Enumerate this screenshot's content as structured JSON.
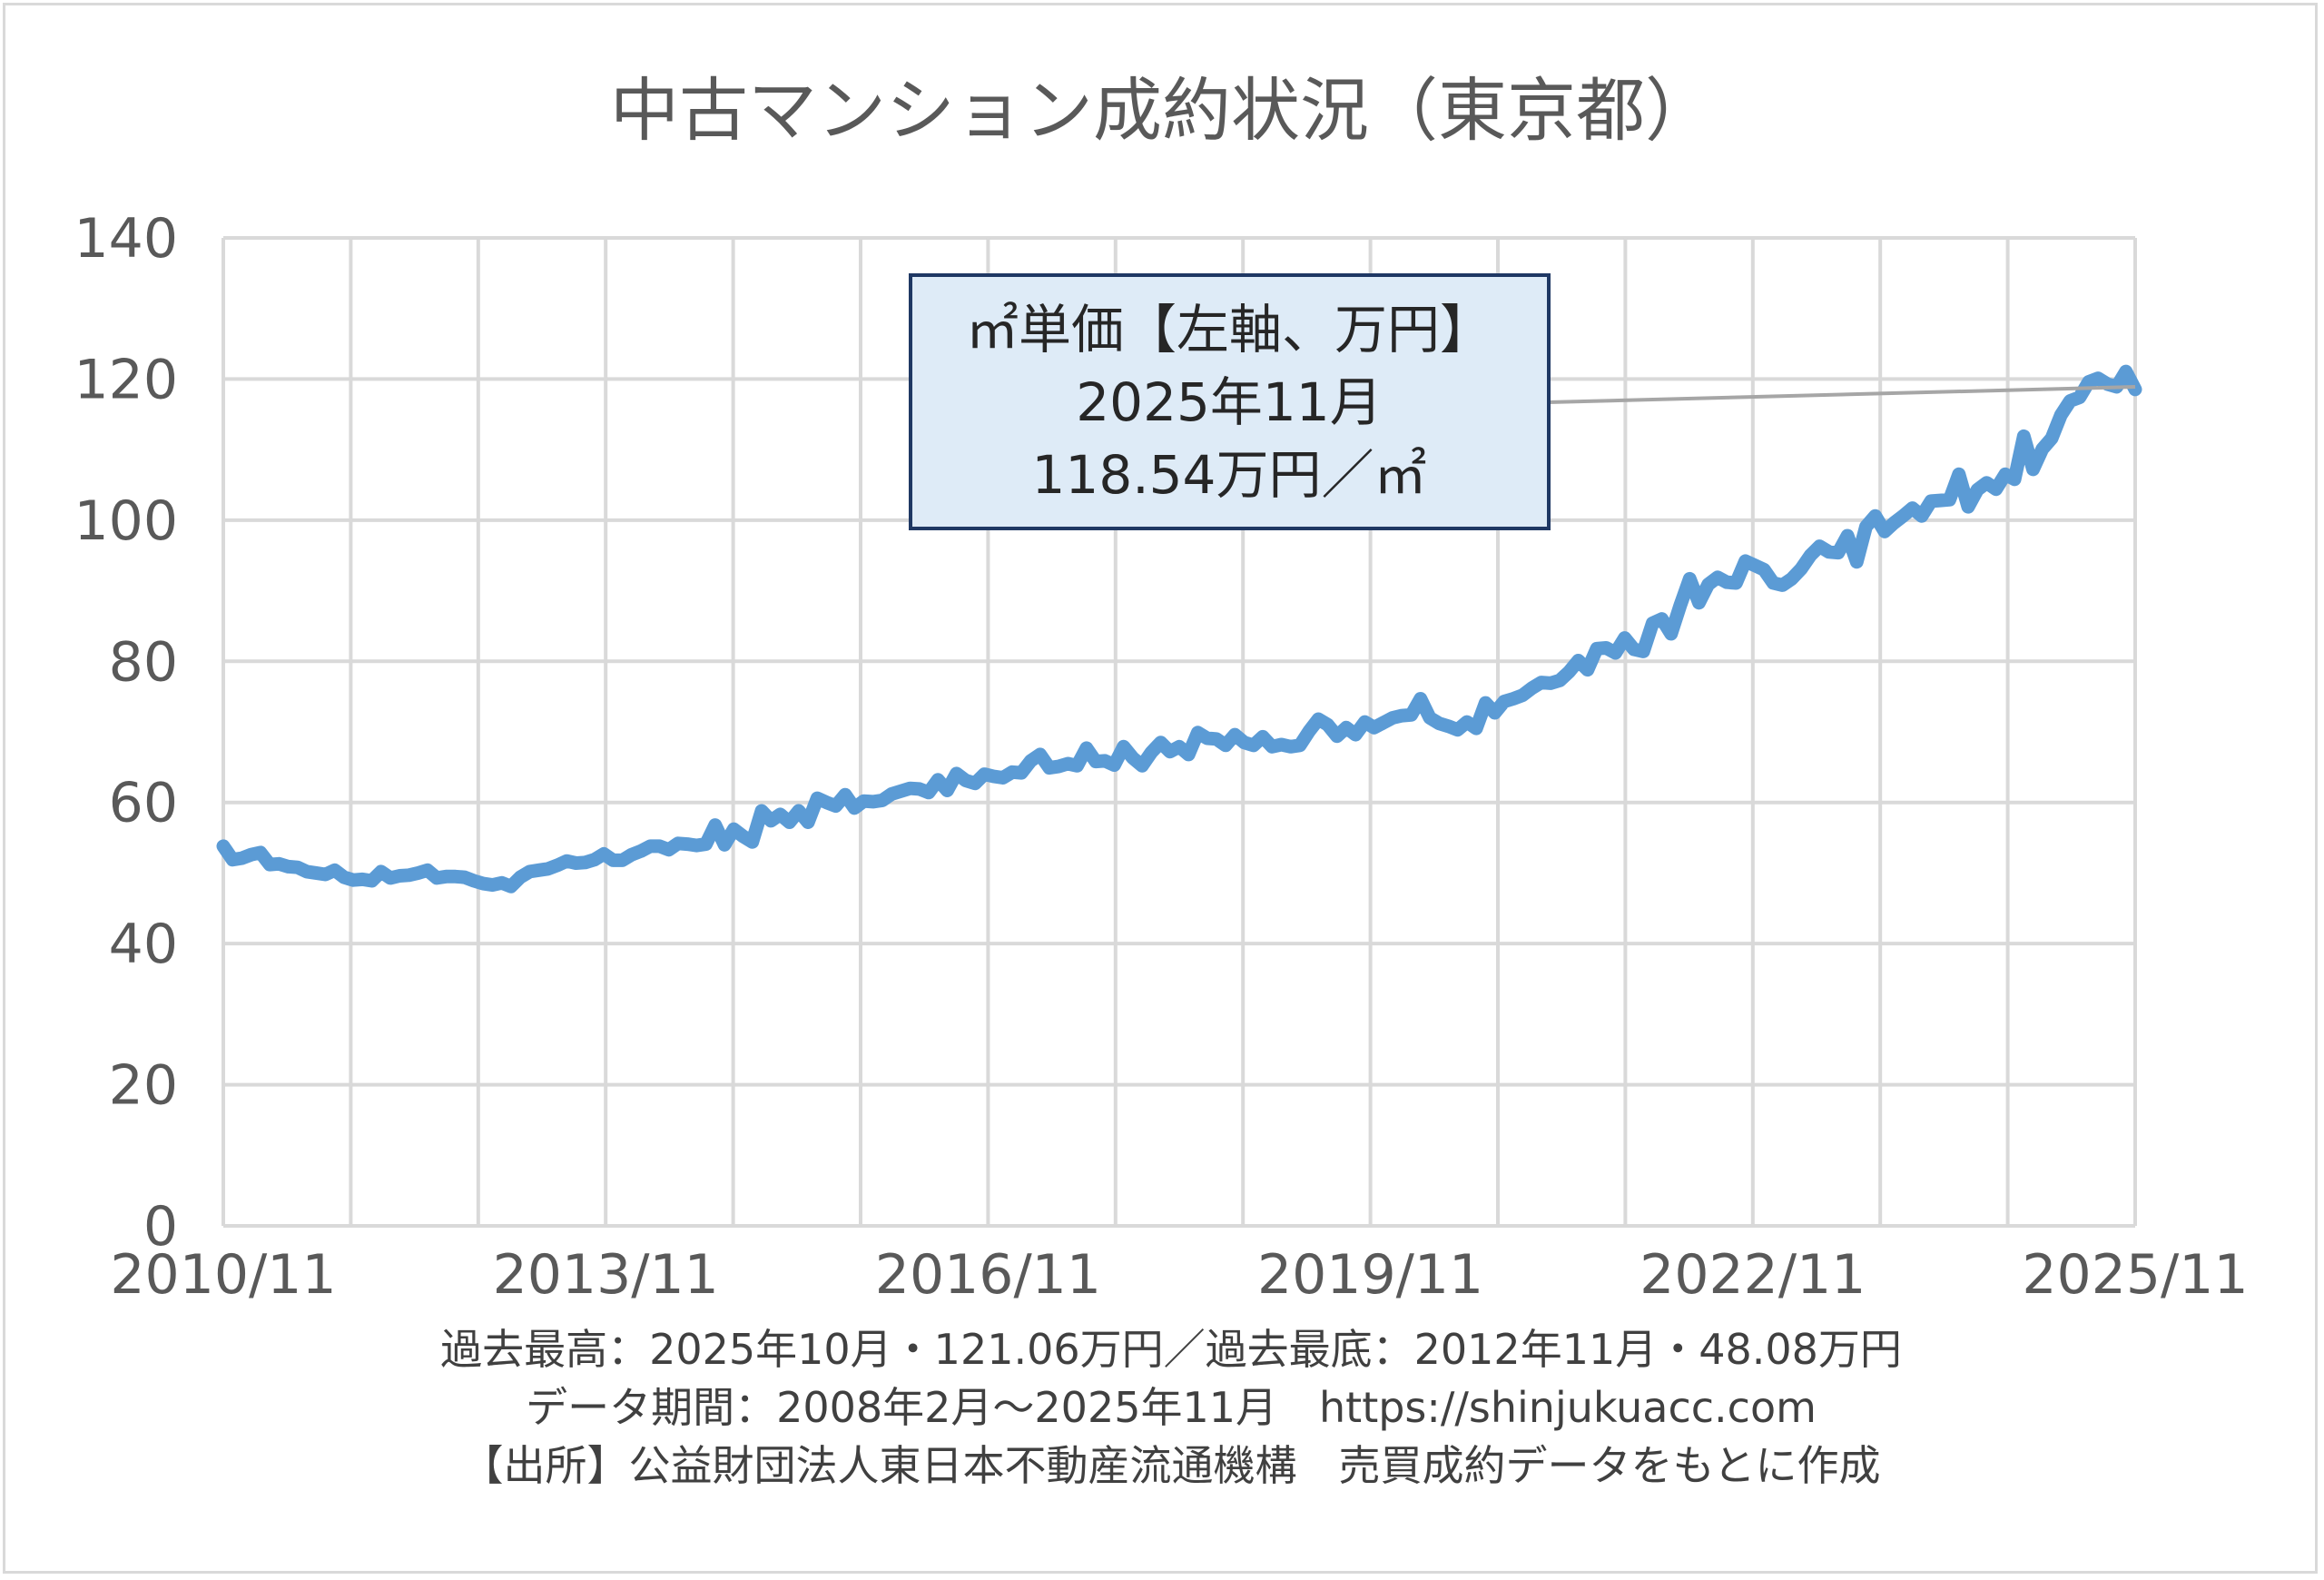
{
  "chart_data": {
    "type": "line",
    "title": "中古マンション成約状況（東京都）",
    "xlabel": "",
    "ylabel": "",
    "ylim": [
      0,
      140
    ],
    "yticks": [
      "0",
      "20",
      "40",
      "60",
      "80",
      "100",
      "120",
      "140"
    ],
    "xticks": [
      "2010/11",
      "2013/11",
      "2016/11",
      "2019/11",
      "2022/11",
      "2025/11"
    ],
    "grid": true,
    "series": [
      {
        "color": "#5b9bd5",
        "x_start": "2010/11",
        "x_end": "2025/11",
        "values": [
          53.8,
          51.9,
          52.1,
          52.6,
          52.9,
          51.2,
          51.3,
          50.9,
          50.8,
          50.2,
          50.0,
          49.8,
          50.4,
          49.4,
          49.0,
          49.1,
          48.9,
          50.2,
          49.3,
          49.6,
          49.7,
          50.0,
          50.4,
          49.3,
          49.5,
          49.5,
          49.4,
          48.9,
          48.5,
          48.3,
          48.6,
          48.1,
          49.4,
          50.2,
          50.4,
          50.6,
          51.1,
          51.7,
          51.4,
          51.5,
          51.9,
          52.7,
          51.8,
          51.8,
          52.6,
          53.1,
          53.8,
          53.8,
          53.3,
          54.2,
          54.1,
          53.9,
          54.1,
          56.8,
          54.0,
          56.2,
          55.2,
          54.4,
          58.8,
          57.4,
          58.3,
          57.2,
          58.8,
          57.2,
          60.6,
          60.0,
          59.5,
          61.1,
          59.2,
          60.2,
          60.1,
          60.3,
          61.2,
          61.6,
          62.0,
          61.9,
          61.4,
          63.2,
          61.7,
          64.1,
          63.1,
          62.7,
          64.0,
          63.7,
          63.5,
          64.3,
          64.2,
          65.9,
          66.8,
          64.9,
          65.1,
          65.5,
          65.2,
          67.7,
          65.8,
          65.9,
          65.3,
          67.9,
          66.3,
          65.2,
          67.1,
          68.5,
          67.2,
          67.9,
          66.8,
          69.9,
          69.1,
          69.0,
          68.1,
          69.6,
          68.5,
          68.1,
          69.3,
          67.9,
          68.2,
          67.9,
          68.1,
          70.1,
          71.8,
          71.0,
          69.4,
          70.6,
          69.6,
          71.4,
          70.6,
          71.3,
          72.0,
          72.3,
          72.4,
          74.7,
          72.0,
          71.2,
          70.8,
          70.3,
          71.4,
          70.5,
          74.1,
          72.7,
          74.3,
          74.7,
          75.2,
          76.2,
          77.0,
          76.9,
          77.3,
          78.5,
          80.1,
          78.8,
          81.8,
          81.9,
          81.2,
          83.3,
          81.7,
          81.4,
          85.4,
          86.0,
          83.9,
          88.0,
          91.7,
          88.3,
          90.9,
          91.9,
          91.2,
          91.1,
          94.2,
          93.6,
          93.0,
          91.1,
          90.8,
          91.7,
          93.1,
          95.0,
          96.3,
          95.5,
          95.4,
          97.8,
          94.1,
          99.1,
          100.6,
          98.4,
          99.6,
          100.6,
          101.7,
          100.6,
          102.7,
          102.8,
          102.9,
          106.5,
          101.9,
          104.3,
          105.3,
          104.4,
          106.5,
          105.8,
          111.9,
          107.2,
          110.1,
          111.6,
          114.9,
          116.9,
          117.4,
          119.6,
          120.1,
          119.3,
          118.9,
          121.06,
          118.54
        ]
      }
    ],
    "annotation": {
      "line1": "㎡単価【左軸、万円】",
      "line2": "2025年11月",
      "line3": "118.54万円／㎡"
    }
  },
  "notes": {
    "line1": "過去最高：2025年10月・121.06万円／過去最底：2012年11月・48.08万円",
    "line2": "データ期間：2008年2月～2025年11月　https://shinjukuacc.com",
    "line3": "【出所】公益財団法人東日本不動産流通機構　売買成約データをもとに作成"
  }
}
